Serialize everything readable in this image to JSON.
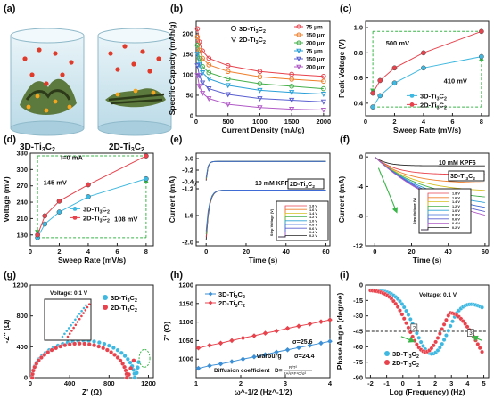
{
  "panel_letters": [
    "(a)",
    "(b)",
    "(c)",
    "(d)",
    "(e)",
    "(f)",
    "(g)",
    "(h)",
    "(i)"
  ],
  "panel_a": {
    "label_3d": "3D-Ti3C2",
    "label_2d": "2D-Ti3C2"
  },
  "chart_data": [
    {
      "panel": "b",
      "type": "line",
      "xlabel": "Current Density (mA/g)",
      "ylabel": "Specific Capacity (mAh/g)",
      "xlim": [
        0,
        2100
      ],
      "ylim": [
        0,
        230
      ],
      "xticks": [
        "0",
        "500",
        "1000",
        "1500",
        "2000"
      ],
      "yticks": [
        "0",
        "50",
        "100",
        "150",
        "200"
      ],
      "legend_groups": [
        "3D-Ti3C2",
        "2D-Ti3C2"
      ],
      "series": [
        {
          "name": "75 μm",
          "group": "3D-Ti3C2",
          "color": "#e8424c",
          "marker": "circle",
          "x": [
            20,
            50,
            100,
            200,
            500,
            1000,
            1500,
            2000
          ],
          "y": [
            212,
            180,
            158,
            140,
            122,
            108,
            101,
            96
          ]
        },
        {
          "name": "150 μm",
          "group": "3D-Ti3C2",
          "color": "#f07e2a",
          "marker": "circle",
          "x": [
            20,
            50,
            100,
            200,
            500,
            1000,
            1500,
            2000
          ],
          "y": [
            192,
            160,
            140,
            124,
            108,
            95,
            89,
            84
          ]
        },
        {
          "name": "200 μm",
          "group": "3D-Ti3C2",
          "color": "#45b04a",
          "marker": "circle",
          "x": [
            20,
            50,
            100,
            200,
            500,
            1000,
            1500,
            2000
          ],
          "y": [
            172,
            140,
            120,
            105,
            90,
            78,
            72,
            66
          ]
        },
        {
          "name": "75 μm",
          "group": "2D-Ti3C2",
          "color": "#2aa0d8",
          "marker": "triangle",
          "x": [
            20,
            50,
            100,
            200,
            500,
            1000,
            1500,
            2000
          ],
          "y": [
            150,
            124,
            105,
            90,
            74,
            62,
            57,
            53
          ]
        },
        {
          "name": "150 μm",
          "group": "2D-Ti3C2",
          "color": "#5a5fd0",
          "marker": "triangle",
          "x": [
            20,
            50,
            100,
            200,
            500,
            1000,
            1500,
            2000
          ],
          "y": [
            122,
            98,
            80,
            66,
            52,
            42,
            38,
            34
          ]
        },
        {
          "name": "200 μm",
          "group": "2D-Ti3C2",
          "color": "#b15bc7",
          "marker": "triangle",
          "x": [
            20,
            50,
            100,
            200,
            500,
            1000,
            1500,
            2000
          ],
          "y": [
            98,
            72,
            55,
            42,
            28,
            20,
            16,
            14
          ]
        }
      ]
    },
    {
      "panel": "c",
      "type": "line",
      "xlabel": "Sweep Rate (mV/s)",
      "ylabel": "Peak Voltage (V)",
      "xlim": [
        0,
        8.5
      ],
      "ylim": [
        0.3,
        1.05
      ],
      "xticks": [
        "0",
        "2",
        "4",
        "6",
        "8"
      ],
      "yticks": [
        "0.4",
        "0.6",
        "0.8",
        "1.0"
      ],
      "annotations": [
        "500 mV",
        "410 mV"
      ],
      "series": [
        {
          "name": "3D-Ti3C2",
          "color": "#3eb8e0",
          "x": [
            0.5,
            1,
            2,
            4,
            8
          ],
          "y": [
            0.37,
            0.46,
            0.56,
            0.68,
            0.77
          ]
        },
        {
          "name": "2D-Ti3C2",
          "color": "#e8424c",
          "x": [
            0.5,
            1,
            2,
            4,
            8
          ],
          "y": [
            0.48,
            0.58,
            0.68,
            0.8,
            0.97
          ]
        }
      ]
    },
    {
      "panel": "d",
      "type": "line",
      "xlabel": "Sweep Rate (mV/s)",
      "ylabel": "Voltage (mV)",
      "xlim": [
        0,
        8.5
      ],
      "ylim": [
        160,
        330
      ],
      "xticks": [
        "0",
        "2",
        "4",
        "6",
        "8"
      ],
      "yticks": [
        "180",
        "210",
        "240",
        "270",
        "300",
        "330"
      ],
      "annotations": [
        "I=0 mA",
        "145 mV",
        "108 mV"
      ],
      "series": [
        {
          "name": "3D-Ti3C2",
          "color": "#3eb8e0",
          "x": [
            0.5,
            1,
            2,
            4,
            8
          ],
          "y": [
            175,
            200,
            222,
            250,
            283
          ]
        },
        {
          "name": "2D-Ti3C2",
          "color": "#e8424c",
          "x": [
            0.5,
            1,
            2,
            4,
            8
          ],
          "y": [
            180,
            215,
            242,
            272,
            325
          ]
        }
      ]
    },
    {
      "panel": "e",
      "type": "line",
      "xlabel": "Time (s)",
      "ylabel": "Current (mA)",
      "xlim": [
        -5,
        62
      ],
      "ylim": [
        -2.0,
        0.05
      ],
      "xticks": [
        "0",
        "20",
        "40",
        "60"
      ],
      "yticks": [
        "-2.0",
        "-1.6",
        "-1.2",
        "-0.4",
        "-0.2",
        "0.0"
      ],
      "annotations": [
        "10 mM KPF6",
        "2D-Ti3C2"
      ],
      "inset": {
        "ylabel": "Step Voltage (V)",
        "xlabel": "Time (s)",
        "levels": [
          "1.8 V",
          "1.6 V",
          "1.4 V",
          "1.2 V",
          "1.0 V",
          "0.8 V",
          "0.6 V",
          "0.4 V",
          "0.2 V"
        ]
      }
    },
    {
      "panel": "f",
      "type": "line",
      "xlabel": "Time (s)",
      "ylabel": "Current (mA)",
      "xlim": [
        -5,
        62
      ],
      "ylim": [
        -12,
        0.5
      ],
      "xticks": [
        "0",
        "20",
        "40",
        "60"
      ],
      "yticks": [
        "-12",
        "-8",
        "-4",
        "0"
      ],
      "annotations": [
        "10 mM KPF6",
        "3D-Ti3C2"
      ],
      "inset": {
        "ylabel": "Step Voltage (V)",
        "xlabel": "Time (s)",
        "levels": [
          "1.8 V",
          "1.6 V",
          "1.4 V",
          "1.2 V",
          "1.0 V",
          "0.8 V",
          "0.6 V",
          "0.4 V",
          "0.2 V"
        ]
      }
    },
    {
      "panel": "g",
      "type": "scatter",
      "xlabel": "Z' (Ω)",
      "ylabel": "-Z'' (Ω)",
      "xlim": [
        0,
        1250
      ],
      "ylim": [
        0,
        1200
      ],
      "xticks": [
        "0",
        "400",
        "800",
        "1200"
      ],
      "yticks": [
        "0",
        "400",
        "800",
        "1200"
      ],
      "annotations": [
        "Voltage:  0.1 V"
      ],
      "series": [
        {
          "name": "3D-Ti3C2",
          "color": "#3eb8e0"
        },
        {
          "name": "2D-Ti3C2",
          "color": "#e8424c"
        }
      ],
      "inset": {
        "xticks": [
          "0",
          "20",
          "40",
          "60"
        ],
        "yticks": [
          "0",
          "20",
          "40",
          "60"
        ]
      }
    },
    {
      "panel": "h",
      "type": "scatter",
      "xlabel": "ω^-1/2 (Hz^-1/2)",
      "ylabel": "Z' (Ω)",
      "xlim": [
        1,
        4
      ],
      "ylim": [
        950,
        1200
      ],
      "xticks": [
        "1",
        "2",
        "3",
        "4"
      ],
      "yticks": [
        "1000",
        "1050",
        "1100",
        "1150",
        "1200"
      ],
      "annotations": [
        "σ=25.6",
        "σ=24.4",
        "warburg",
        "Diffusion coefficient"
      ],
      "series": [
        {
          "name": "3D-Ti3C2",
          "color": "#3b8fd6",
          "x": [
            1.05,
            1.3,
            1.55,
            1.8,
            2.05,
            2.3,
            2.55,
            2.8,
            3.05,
            3.3,
            3.55,
            3.8,
            4.0
          ],
          "y": [
            975,
            982,
            987,
            993,
            1000,
            1006,
            1012,
            1019,
            1025,
            1031,
            1037,
            1043,
            1048
          ]
        },
        {
          "name": "2D-Ti3C2",
          "color": "#e8424c",
          "x": [
            1.05,
            1.3,
            1.55,
            1.8,
            2.05,
            2.3,
            2.55,
            2.8,
            3.05,
            3.3,
            3.55,
            3.8,
            4.0
          ],
          "y": [
            1030,
            1037,
            1043,
            1050,
            1057,
            1063,
            1070,
            1076,
            1083,
            1089,
            1095,
            1101,
            1106
          ]
        }
      ]
    },
    {
      "panel": "i",
      "type": "scatter",
      "xlabel": "Log (Frequency) (Hz)",
      "ylabel": "Phase Angle (degree)",
      "xlim": [
        -2.3,
        5.3
      ],
      "ylim": [
        -90,
        0
      ],
      "xticks": [
        "-2",
        "-1",
        "0",
        "1",
        "2",
        "3",
        "4",
        "5"
      ],
      "yticks": [
        "0",
        "-15",
        "-30",
        "-45",
        "-60",
        "-75",
        "-90"
      ],
      "annotations": [
        "Voltage:  0.1 V",
        "③",
        "②"
      ],
      "series": [
        {
          "name": "3D-Ti3C2",
          "color": "#3eb8e0"
        },
        {
          "name": "2D-Ti3C2",
          "color": "#e8424c"
        }
      ]
    }
  ]
}
